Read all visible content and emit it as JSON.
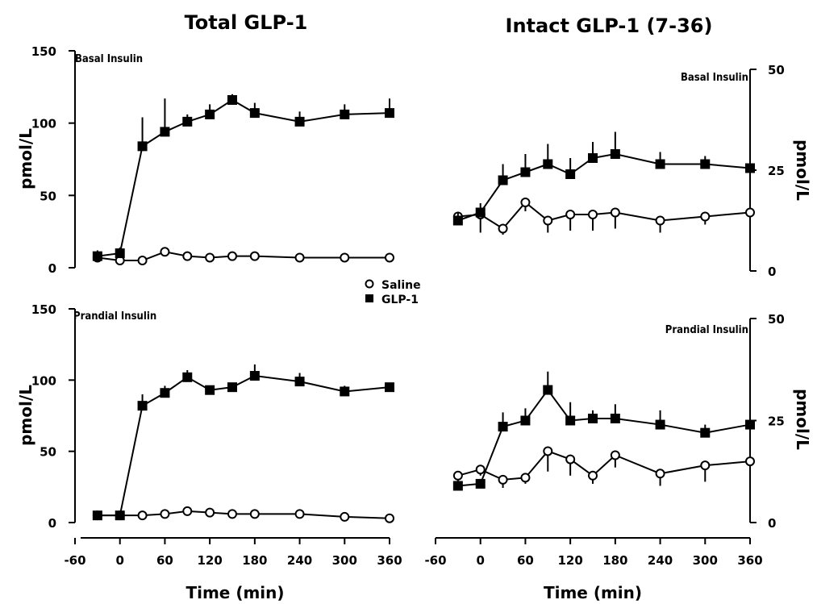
{
  "titles": {
    "left": "Total GLP-1",
    "right": "Intact GLP-1 (7-36)"
  },
  "legend": {
    "saline": "Saline",
    "glp1": "GLP-1"
  },
  "chart_data": [
    {
      "type": "line",
      "id": "tl",
      "annotation": "Basal Insulin",
      "ylabel": "pmol/L",
      "xlabel": "",
      "ylim": [
        0,
        150
      ],
      "yticks": [
        0,
        50,
        100,
        150
      ],
      "xlim": [
        -60,
        360
      ],
      "xticks": [
        -60,
        0,
        60,
        120,
        180,
        240,
        300,
        360
      ],
      "series": [
        {
          "name": "Saline",
          "marker": "circle",
          "x": [
            -30,
            0,
            30,
            60,
            90,
            120,
            150,
            180,
            240,
            300,
            360
          ],
          "y": [
            7,
            5,
            5,
            11,
            8,
            7,
            8,
            8,
            7,
            7,
            7
          ],
          "err": [
            3,
            2,
            2,
            2,
            2,
            2,
            2,
            2,
            2,
            2,
            2
          ]
        },
        {
          "name": "GLP-1",
          "marker": "square",
          "x": [
            -30,
            0,
            30,
            60,
            90,
            120,
            150,
            180,
            240,
            300,
            360
          ],
          "y": [
            8,
            10,
            84,
            94,
            101,
            106,
            116,
            107,
            101,
            106,
            107
          ],
          "err": [
            4,
            4,
            20,
            23,
            5,
            7,
            4,
            7,
            7,
            7,
            10
          ]
        }
      ]
    },
    {
      "type": "line",
      "id": "tr",
      "annotation": "Basal Insulin",
      "ylabel": "pmol/L",
      "xlabel": "",
      "ylim": [
        0,
        50
      ],
      "yticks": [
        0,
        25,
        50
      ],
      "xlim": [
        -60,
        360
      ],
      "xticks": [
        -60,
        0,
        60,
        120,
        180,
        240,
        300,
        360
      ],
      "series": [
        {
          "name": "Saline",
          "marker": "circle",
          "x": [
            -30,
            0,
            30,
            60,
            90,
            120,
            150,
            180,
            240,
            300,
            360
          ],
          "y": [
            13.5,
            14,
            10.5,
            17,
            12.5,
            14,
            14,
            14.5,
            12.5,
            13.5,
            14.5
          ],
          "err": [
            1.5,
            4.5,
            1.5,
            2.2,
            3,
            4,
            4,
            4,
            3,
            2,
            2
          ]
        },
        {
          "name": "GLP-1",
          "marker": "square",
          "x": [
            -30,
            0,
            30,
            60,
            90,
            120,
            150,
            180,
            240,
            300,
            360
          ],
          "y": [
            12.5,
            14.5,
            22.5,
            24.5,
            26.5,
            24,
            28,
            29,
            26.5,
            26.5,
            25.5
          ],
          "err": [
            2,
            2.3,
            4,
            4.5,
            5,
            4,
            4,
            5.5,
            3,
            2,
            2.5
          ]
        }
      ]
    },
    {
      "type": "line",
      "id": "bl",
      "annotation": "Prandial Insulin",
      "ylabel": "pmol/L",
      "xlabel": "Time (min)",
      "ylim": [
        0,
        150
      ],
      "yticks": [
        0,
        50,
        100,
        150
      ],
      "xlim": [
        -60,
        360
      ],
      "xticks": [
        -60,
        0,
        60,
        120,
        180,
        240,
        300,
        360
      ],
      "series": [
        {
          "name": "Saline",
          "marker": "circle",
          "x": [
            -30,
            0,
            30,
            60,
            90,
            120,
            150,
            180,
            240,
            300,
            360
          ],
          "y": [
            5,
            5,
            5,
            6,
            8,
            7,
            6,
            6,
            6,
            4,
            3
          ],
          "err": [
            2,
            2,
            2,
            2,
            2,
            2,
            2,
            2,
            2,
            2,
            2
          ]
        },
        {
          "name": "GLP-1",
          "marker": "square",
          "x": [
            -30,
            0,
            30,
            60,
            90,
            120,
            150,
            180,
            240,
            300,
            360
          ],
          "y": [
            5,
            5,
            82,
            91,
            102,
            93,
            95,
            103,
            99,
            92,
            95
          ],
          "err": [
            2,
            2,
            8,
            5,
            5,
            3,
            3,
            8,
            6,
            4,
            3
          ]
        }
      ]
    },
    {
      "type": "line",
      "id": "br",
      "annotation": "Prandial Insulin",
      "ylabel": "pmol/L",
      "xlabel": "Time (min)",
      "ylim": [
        0,
        50
      ],
      "yticks": [
        0,
        25,
        50
      ],
      "xlim": [
        -60,
        360
      ],
      "xticks": [
        -60,
        0,
        60,
        120,
        180,
        240,
        300,
        360
      ],
      "series": [
        {
          "name": "Saline",
          "marker": "circle",
          "x": [
            -30,
            0,
            30,
            60,
            90,
            120,
            150,
            180,
            240,
            300,
            360
          ],
          "y": [
            11.5,
            13,
            10.5,
            11,
            17.5,
            15.5,
            11.5,
            16.5,
            12,
            14,
            15
          ],
          "err": [
            1.5,
            1.5,
            2,
            1.5,
            5,
            4,
            2,
            3,
            3,
            4,
            5
          ]
        },
        {
          "name": "GLP-1",
          "marker": "square",
          "x": [
            -30,
            0,
            30,
            60,
            90,
            120,
            150,
            180,
            240,
            300,
            360
          ],
          "y": [
            9,
            9.5,
            23.5,
            25,
            32.5,
            25,
            25.5,
            25.5,
            24,
            22,
            24
          ],
          "err": [
            1,
            1.2,
            3.5,
            3,
            4.5,
            4.5,
            2,
            3.5,
            3.5,
            2,
            2
          ]
        }
      ]
    }
  ]
}
